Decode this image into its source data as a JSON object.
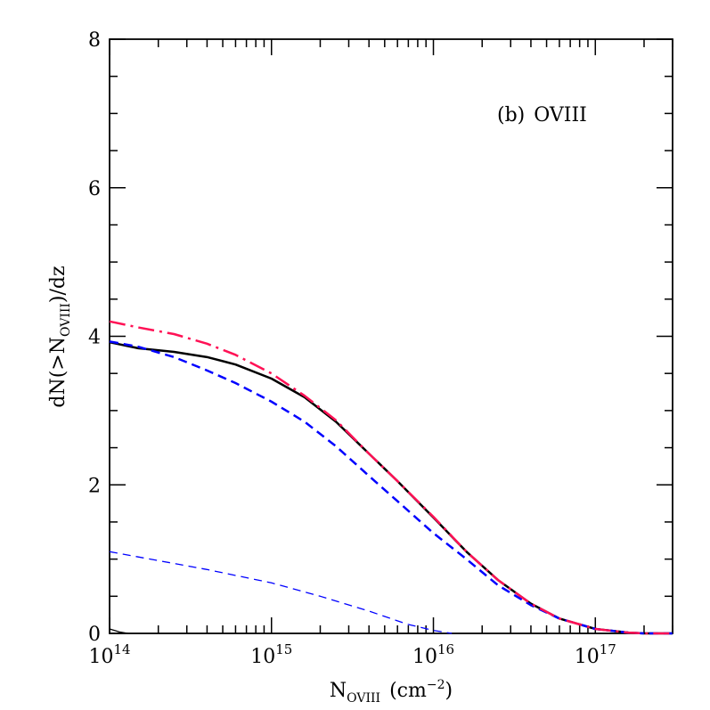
{
  "chart_data": {
    "type": "line",
    "annotation": {
      "prefix": "(b)",
      "ion": "OVIII"
    },
    "xlabel": {
      "base": "N",
      "sub": "OVIII",
      "unit_open": "(cm",
      "unit_sup": "−2",
      "unit_close": ")"
    },
    "ylabel": {
      "pre": "dN(>N",
      "sub": "OVIII",
      "post": ")/dz"
    },
    "x_scale": "log",
    "xlim": [
      100000000000000.0,
      3e+17
    ],
    "ylim": [
      0,
      8
    ],
    "x_ticks": [
      {
        "value": 100000000000000.0,
        "base": "10",
        "exp": "14"
      },
      {
        "value": 1000000000000000.0,
        "base": "10",
        "exp": "15"
      },
      {
        "value": 1e+16,
        "base": "10",
        "exp": "16"
      },
      {
        "value": 1e+17,
        "base": "10",
        "exp": "17"
      }
    ],
    "y_ticks": [
      {
        "value": 0,
        "label": "0"
      },
      {
        "value": 2,
        "label": "2"
      },
      {
        "value": 4,
        "label": "4"
      },
      {
        "value": 6,
        "label": "6"
      },
      {
        "value": 8,
        "label": "8"
      }
    ],
    "grid": false,
    "series": [
      {
        "color": "#000000",
        "dash": "solid",
        "width": 2.5,
        "points": [
          [
            100000000000000.0,
            3.92
          ],
          [
            150000000000000.0,
            3.84
          ],
          [
            250000000000000.0,
            3.79
          ],
          [
            400000000000000.0,
            3.72
          ],
          [
            600000000000000.0,
            3.62
          ],
          [
            1000000000000000.0,
            3.43
          ],
          [
            1600000000000000.0,
            3.18
          ],
          [
            2500000000000000.0,
            2.85
          ],
          [
            4000000000000000.0,
            2.42
          ],
          [
            6000000000000000.0,
            2.05
          ],
          [
            1e+16,
            1.56
          ],
          [
            1.6e+16,
            1.1
          ],
          [
            2.5e+16,
            0.72
          ],
          [
            4e+16,
            0.4
          ],
          [
            6e+16,
            0.2
          ],
          [
            1e+17,
            0.06
          ],
          [
            1.6e+17,
            0.01
          ],
          [
            2e+17,
            0.0
          ],
          [
            3e+17,
            0.0
          ]
        ]
      },
      {
        "color": "#0000ff",
        "dash": "dashed",
        "width": 2.5,
        "points": [
          [
            100000000000000.0,
            3.93
          ],
          [
            150000000000000.0,
            3.86
          ],
          [
            250000000000000.0,
            3.72
          ],
          [
            400000000000000.0,
            3.54
          ],
          [
            600000000000000.0,
            3.37
          ],
          [
            1000000000000000.0,
            3.12
          ],
          [
            1600000000000000.0,
            2.85
          ],
          [
            2500000000000000.0,
            2.52
          ],
          [
            4000000000000000.0,
            2.12
          ],
          [
            6000000000000000.0,
            1.78
          ],
          [
            1e+16,
            1.35
          ],
          [
            1.6e+16,
            1.0
          ],
          [
            2.5e+16,
            0.65
          ],
          [
            4e+16,
            0.38
          ],
          [
            6e+16,
            0.2
          ],
          [
            1e+17,
            0.06
          ],
          [
            1.6e+17,
            0.01
          ],
          [
            2e+17,
            0.0
          ],
          [
            3e+17,
            0.0
          ]
        ]
      },
      {
        "color": "#ff1155",
        "dash": "dashdot",
        "width": 2.5,
        "points": [
          [
            100000000000000.0,
            4.2
          ],
          [
            150000000000000.0,
            4.12
          ],
          [
            250000000000000.0,
            4.03
          ],
          [
            400000000000000.0,
            3.9
          ],
          [
            600000000000000.0,
            3.75
          ],
          [
            1000000000000000.0,
            3.5
          ],
          [
            1600000000000000.0,
            3.2
          ],
          [
            2500000000000000.0,
            2.87
          ],
          [
            4000000000000000.0,
            2.42
          ],
          [
            6000000000000000.0,
            2.05
          ],
          [
            1e+16,
            1.57
          ],
          [
            1.6e+16,
            1.1
          ],
          [
            2.5e+16,
            0.72
          ],
          [
            4e+16,
            0.4
          ],
          [
            6e+16,
            0.2
          ],
          [
            1e+17,
            0.06
          ],
          [
            1.6e+17,
            0.01
          ],
          [
            2e+17,
            0.0
          ],
          [
            3e+17,
            0.0
          ]
        ]
      },
      {
        "color": "#0000ff",
        "dash": "dashed-thin",
        "width": 1.3,
        "points": [
          [
            100000000000000.0,
            1.1
          ],
          [
            200000000000000.0,
            0.98
          ],
          [
            400000000000000.0,
            0.86
          ],
          [
            1000000000000000.0,
            0.68
          ],
          [
            2000000000000000.0,
            0.5
          ],
          [
            4000000000000000.0,
            0.3
          ],
          [
            7000000000000000.0,
            0.12
          ],
          [
            1e+16,
            0.04
          ],
          [
            1.3e+16,
            0.0
          ]
        ]
      },
      {
        "color": "#000000",
        "dash": "solid-thin",
        "width": 1.3,
        "points": [
          [
            100000000000000.0,
            0.06
          ],
          [
            115000000000000.0,
            0.02
          ],
          [
            130000000000000.0,
            0.0
          ]
        ]
      }
    ]
  }
}
